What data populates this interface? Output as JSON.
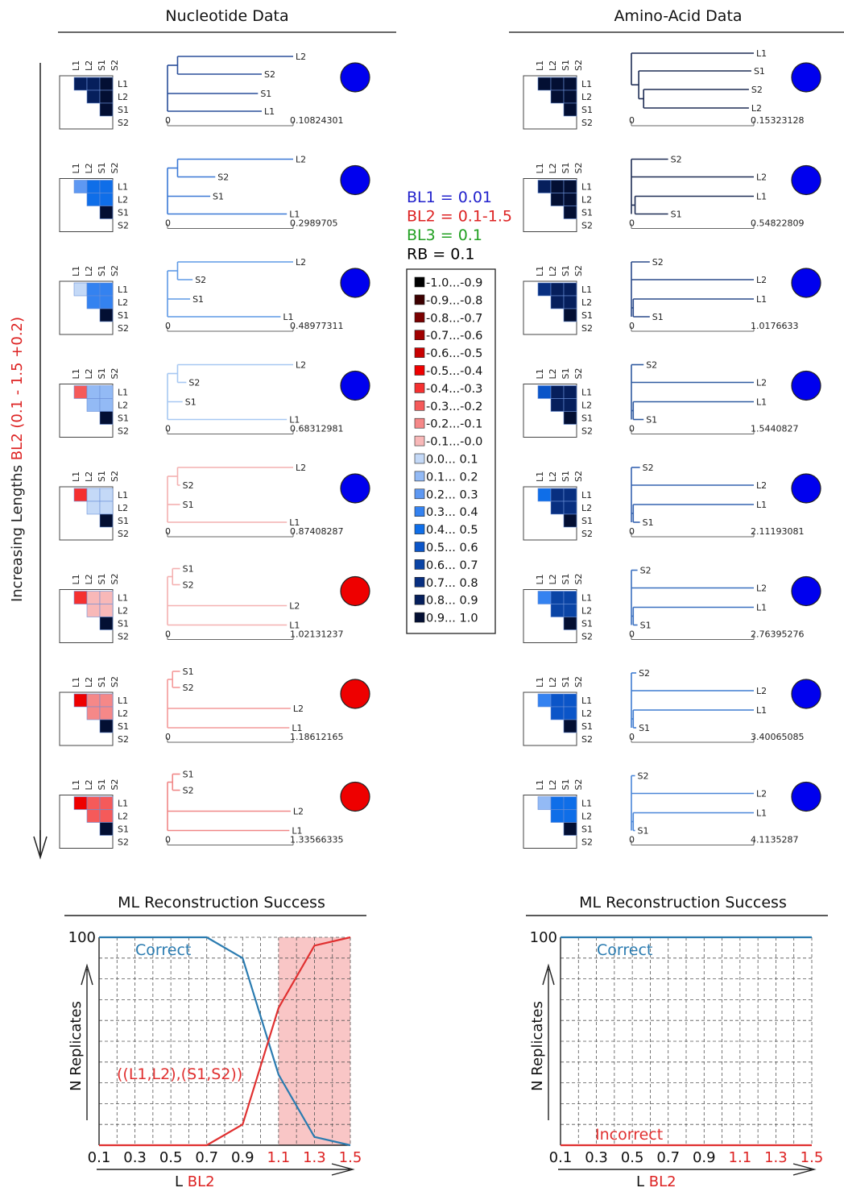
{
  "headers": {
    "nucleotide": "Nucleotide Data",
    "amino": "Amino-Acid Data"
  },
  "y_axis_label": {
    "prefix": "Increasing Lengths ",
    "highlight": "BL2 (0.1 - 1.5 +0.2)"
  },
  "taxa": [
    "L1",
    "L2",
    "S1",
    "S2"
  ],
  "params": [
    {
      "text": "BL1 = 0.01",
      "color": "#2222cc"
    },
    {
      "text": "BL2 = 0.1-1.5",
      "color": "#dd2222"
    },
    {
      "text": "BL3 = 0.1",
      "color": "#22a022"
    },
    {
      "text": "RB = 0.1",
      "color": "#000000"
    }
  ],
  "legend": [
    {
      "label": "-1.0...-0.9",
      "color": "#000000"
    },
    {
      "label": "-0.9...-0.8",
      "color": "#3d0000"
    },
    {
      "label": "-0.8...-0.7",
      "color": "#7a0000"
    },
    {
      "label": "-0.7...-0.6",
      "color": "#a00000"
    },
    {
      "label": "-0.6...-0.5",
      "color": "#c80000"
    },
    {
      "label": "-0.5...-0.4",
      "color": "#ee0000"
    },
    {
      "label": "-0.4...-0.3",
      "color": "#f53030"
    },
    {
      "label": "-0.3...-0.2",
      "color": "#f55a5a"
    },
    {
      "label": "-0.2...-0.1",
      "color": "#f58888"
    },
    {
      "label": "-0.1...-0.0",
      "color": "#f8b8b8"
    },
    {
      "label": "0.0... 0.1",
      "color": "#c4d9f7"
    },
    {
      "label": "0.1... 0.2",
      "color": "#93baf5"
    },
    {
      "label": "0.2... 0.3",
      "color": "#5e98f2"
    },
    {
      "label": "0.3... 0.4",
      "color": "#3482f0"
    },
    {
      "label": "0.4... 0.5",
      "color": "#0f6ee8"
    },
    {
      "label": "0.5... 0.6",
      "color": "#0b55c8"
    },
    {
      "label": "0.6... 0.7",
      "color": "#0a44a5"
    },
    {
      "label": "0.7... 0.8",
      "color": "#082f80"
    },
    {
      "label": "0.8... 0.9",
      "color": "#061f5c"
    },
    {
      "label": "0.9... 1.0",
      "color": "#030f33"
    }
  ],
  "nucleotide_rows": [
    {
      "scale_max": "0.10824301",
      "result": "correct",
      "tree_color": "#2a4f9a",
      "matrix": [
        [
          0.85,
          0.85,
          0.95
        ],
        [
          0.85,
          0.95
        ],
        [
          0.95
        ]
      ],
      "tree": {
        "type": "correct",
        "leaves": [
          {
            "label": "L2",
            "len": 1.0
          },
          {
            "label": "S2",
            "len": 0.75
          },
          {
            "label": "S1",
            "len": 0.72
          },
          {
            "label": "L1",
            "len": 0.75
          }
        ]
      }
    },
    {
      "scale_max": "0.2989705",
      "result": "correct",
      "tree_color": "#3a78d6",
      "matrix": [
        [
          0.25,
          0.45,
          0.45
        ],
        [
          0.45,
          0.45
        ],
        [
          0.95
        ]
      ],
      "tree": {
        "type": "correct",
        "leaves": [
          {
            "label": "L2",
            "len": 1.0
          },
          {
            "label": "S2",
            "len": 0.38
          },
          {
            "label": "S1",
            "len": 0.34
          },
          {
            "label": "L1",
            "len": 0.95
          }
        ]
      }
    },
    {
      "scale_max": "0.48977311",
      "result": "correct",
      "tree_color": "#5f9ae6",
      "matrix": [
        [
          0.05,
          0.35,
          0.35
        ],
        [
          0.35,
          0.35
        ],
        [
          0.95
        ]
      ],
      "tree": {
        "type": "correct",
        "leaves": [
          {
            "label": "L2",
            "len": 1.0
          },
          {
            "label": "S2",
            "len": 0.2
          },
          {
            "label": "S1",
            "len": 0.18
          },
          {
            "label": "L1",
            "len": 0.9
          }
        ]
      }
    },
    {
      "scale_max": "0.68312981",
      "result": "correct",
      "tree_color": "#a7c8f2",
      "matrix": [
        [
          -0.25,
          0.15,
          0.15
        ],
        [
          0.15,
          0.15
        ],
        [
          0.95
        ]
      ],
      "tree": {
        "type": "correct",
        "leaves": [
          {
            "label": "L2",
            "len": 1.0
          },
          {
            "label": "S2",
            "len": 0.15
          },
          {
            "label": "S1",
            "len": 0.12
          },
          {
            "label": "L1",
            "len": 0.95
          }
        ]
      }
    },
    {
      "scale_max": "0.87408287",
      "result": "correct",
      "tree_color": "#f4b1b1",
      "matrix": [
        [
          -0.35,
          0.05,
          0.05
        ],
        [
          0.05,
          0.05
        ],
        [
          0.95
        ]
      ],
      "tree": {
        "type": "correct",
        "leaves": [
          {
            "label": "L2",
            "len": 1.0
          },
          {
            "label": "S2",
            "len": 0.1
          },
          {
            "label": "S1",
            "len": 0.1
          },
          {
            "label": "L1",
            "len": 0.95
          }
        ]
      }
    },
    {
      "scale_max": "1.02131237",
      "result": "incorrect",
      "tree_color": "#f4b1b1",
      "matrix": [
        [
          -0.35,
          -0.05,
          -0.05
        ],
        [
          -0.05,
          -0.05
        ],
        [
          0.95
        ]
      ],
      "tree": {
        "type": "lba",
        "leaves": [
          {
            "label": "S1",
            "len": 0.1
          },
          {
            "label": "S2",
            "len": 0.1
          },
          {
            "label": "L2",
            "len": 0.95
          },
          {
            "label": "L1",
            "len": 0.95
          }
        ]
      }
    },
    {
      "scale_max": "1.18612165",
      "result": "incorrect",
      "tree_color": "#f49a9a",
      "matrix": [
        [
          -0.45,
          -0.15,
          -0.15
        ],
        [
          -0.15,
          -0.15
        ],
        [
          0.95
        ]
      ],
      "tree": {
        "type": "lba",
        "leaves": [
          {
            "label": "S1",
            "len": 0.1
          },
          {
            "label": "S2",
            "len": 0.1
          },
          {
            "label": "L2",
            "len": 0.98
          },
          {
            "label": "L1",
            "len": 0.97
          }
        ]
      }
    },
    {
      "scale_max": "1.33566335",
      "result": "incorrect",
      "tree_color": "#f08787",
      "matrix": [
        [
          -0.45,
          -0.25,
          -0.25
        ],
        [
          -0.25,
          -0.25
        ],
        [
          0.95
        ]
      ],
      "tree": {
        "type": "lba",
        "leaves": [
          {
            "label": "S1",
            "len": 0.1
          },
          {
            "label": "S2",
            "len": 0.1
          },
          {
            "label": "L2",
            "len": 0.98
          },
          {
            "label": "L1",
            "len": 0.97
          }
        ]
      }
    }
  ],
  "amino_rows": [
    {
      "scale_max": "0.15323128",
      "result": "correct",
      "tree_color": "#1e2d55",
      "matrix": [
        [
          0.95,
          0.95,
          0.95
        ],
        [
          0.95,
          0.95
        ],
        [
          0.95
        ]
      ],
      "tree": {
        "type": "aa_a",
        "leaves": [
          {
            "label": "L1",
            "len": 1.0
          },
          {
            "label": "S1",
            "len": 0.98
          },
          {
            "label": "S2",
            "len": 0.96
          },
          {
            "label": "L2",
            "len": 0.96
          }
        ]
      }
    },
    {
      "scale_max": "0.54822809",
      "result": "correct",
      "tree_color": "#1e2d55",
      "matrix": [
        [
          0.85,
          0.95,
          0.95
        ],
        [
          0.95,
          0.95
        ],
        [
          0.95
        ]
      ],
      "tree": {
        "type": "aa_b",
        "leaves": [
          {
            "label": "S2",
            "len": 0.3
          },
          {
            "label": "L2",
            "len": 1.0
          },
          {
            "label": "L1",
            "len": 1.0
          },
          {
            "label": "S1",
            "len": 0.3
          }
        ]
      }
    },
    {
      "scale_max": "1.0176633",
      "result": "correct",
      "tree_color": "#2a4a8a",
      "matrix": [
        [
          0.75,
          0.85,
          0.85
        ],
        [
          0.85,
          0.85
        ],
        [
          0.95
        ]
      ],
      "tree": {
        "type": "aa_c",
        "leaves": [
          {
            "label": "S2",
            "len": 0.15
          },
          {
            "label": "L2",
            "len": 1.0
          },
          {
            "label": "L1",
            "len": 1.0
          },
          {
            "label": "S1",
            "len": 0.15
          }
        ]
      }
    },
    {
      "scale_max": "1.5440827",
      "result": "correct",
      "tree_color": "#2f5aa0",
      "matrix": [
        [
          0.55,
          0.8,
          0.8
        ],
        [
          0.8,
          0.8
        ],
        [
          0.95
        ]
      ],
      "tree": {
        "type": "aa_c",
        "leaves": [
          {
            "label": "S2",
            "len": 0.1
          },
          {
            "label": "L2",
            "len": 1.0
          },
          {
            "label": "L1",
            "len": 1.0
          },
          {
            "label": "S1",
            "len": 0.1
          }
        ]
      }
    },
    {
      "scale_max": "2.11193081",
      "result": "correct",
      "tree_color": "#3563b0",
      "matrix": [
        [
          0.45,
          0.75,
          0.75
        ],
        [
          0.75,
          0.75
        ],
        [
          0.95
        ]
      ],
      "tree": {
        "type": "aa_c",
        "leaves": [
          {
            "label": "S2",
            "len": 0.07
          },
          {
            "label": "L2",
            "len": 1.0
          },
          {
            "label": "L1",
            "len": 1.0
          },
          {
            "label": "S1",
            "len": 0.07
          }
        ]
      }
    },
    {
      "scale_max": "2.76395276",
      "result": "correct",
      "tree_color": "#3a70c0",
      "matrix": [
        [
          0.35,
          0.65,
          0.65
        ],
        [
          0.65,
          0.65
        ],
        [
          0.95
        ]
      ],
      "tree": {
        "type": "aa_c",
        "leaves": [
          {
            "label": "S2",
            "len": 0.05
          },
          {
            "label": "L2",
            "len": 1.0
          },
          {
            "label": "L1",
            "len": 1.0
          },
          {
            "label": "S1",
            "len": 0.05
          }
        ]
      }
    },
    {
      "scale_max": "3.40065085",
      "result": "correct",
      "tree_color": "#3f7cd0",
      "matrix": [
        [
          0.3,
          0.55,
          0.55
        ],
        [
          0.55,
          0.55
        ],
        [
          0.95
        ]
      ],
      "tree": {
        "type": "aa_c",
        "leaves": [
          {
            "label": "S2",
            "len": 0.04
          },
          {
            "label": "L2",
            "len": 1.0
          },
          {
            "label": "L1",
            "len": 1.0
          },
          {
            "label": "S1",
            "len": 0.04
          }
        ]
      }
    },
    {
      "scale_max": "4.1135287",
      "result": "correct",
      "tree_color": "#4a86d8",
      "matrix": [
        [
          0.15,
          0.45,
          0.45
        ],
        [
          0.45,
          0.45
        ],
        [
          0.95
        ]
      ],
      "tree": {
        "type": "aa_c",
        "leaves": [
          {
            "label": "S2",
            "len": 0.03
          },
          {
            "label": "L2",
            "len": 1.0
          },
          {
            "label": "L1",
            "len": 1.0
          },
          {
            "label": "S1",
            "len": 0.03
          }
        ]
      }
    }
  ],
  "chart_data": [
    {
      "type": "line",
      "title": "ML Reconstruction Success",
      "xlabel": "L BL2",
      "ylabel": "N Replicates",
      "x": [
        0.1,
        0.3,
        0.5,
        0.7,
        0.9,
        1.1,
        1.3,
        1.5
      ],
      "xlim": [
        0.1,
        1.5
      ],
      "ylim": [
        0,
        100
      ],
      "grid": true,
      "highlight_region": [
        1.1,
        1.5
      ],
      "series": [
        {
          "name": "Correct",
          "color": "#2a7bb0",
          "values": [
            100,
            100,
            100,
            100,
            90,
            34,
            4,
            0
          ]
        },
        {
          "name": "((L1,L2),(S1,S2))",
          "color": "#e03030",
          "values": [
            0,
            0,
            0,
            0,
            10,
            66,
            96,
            100
          ]
        }
      ]
    },
    {
      "type": "line",
      "title": "ML Reconstruction Success",
      "xlabel": "L BL2",
      "ylabel": "N Replicates",
      "x": [
        0.1,
        0.3,
        0.5,
        0.7,
        0.9,
        1.1,
        1.3,
        1.5
      ],
      "xlim": [
        0.1,
        1.5
      ],
      "ylim": [
        0,
        100
      ],
      "grid": true,
      "series": [
        {
          "name": "Correct",
          "color": "#2a7bb0",
          "values": [
            100,
            100,
            100,
            100,
            100,
            100,
            100,
            100
          ]
        },
        {
          "name": "Incorrect",
          "color": "#e03030",
          "values": [
            0,
            0,
            0,
            0,
            0,
            0,
            0,
            0
          ]
        }
      ]
    }
  ],
  "colors": {
    "correct_dot": "#0000ee",
    "incorrect_dot": "#ee0000"
  }
}
